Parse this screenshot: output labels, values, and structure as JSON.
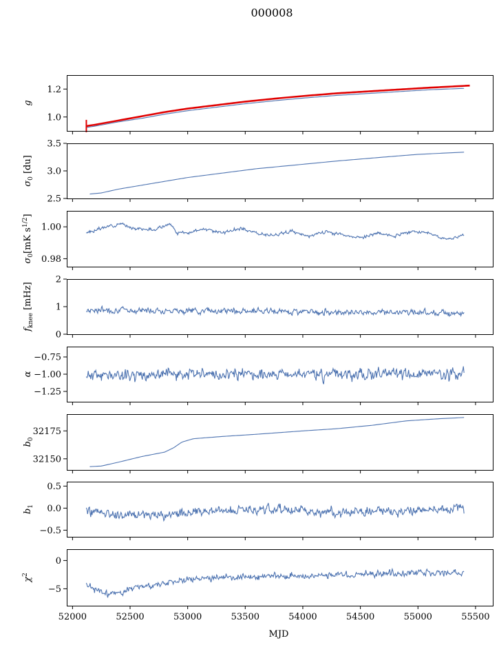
{
  "title": "000008",
  "chart_data": {
    "type": "line",
    "title": "000008",
    "xlabel": "MJD",
    "xlim": [
      51950,
      55650
    ],
    "xticks": [
      52000,
      52500,
      53000,
      53500,
      54000,
      54500,
      55000,
      55500
    ],
    "xtick_labels": [
      "52000",
      "52500",
      "53000",
      "53500",
      "54000",
      "54500",
      "55000",
      "55500"
    ],
    "colors": {
      "series": "#4c72b0",
      "fit": "#e00000"
    },
    "panels": [
      {
        "id": "g",
        "ylabel": "g",
        "ylim": [
          0.9,
          1.3
        ],
        "yticks": [
          1.0,
          1.2
        ],
        "ytick_labels": [
          "1.0",
          "1.2"
        ],
        "series": [
          {
            "style": "smooth",
            "color": "#4c72b0",
            "x": [
              52120,
              52200,
              52400,
              52600,
              52800,
              53000,
              53200,
              53500,
              53800,
              54000,
              54300,
              54600,
              54900,
              55100,
              55400
            ],
            "values": [
              0.925,
              0.935,
              0.965,
              0.99,
              1.02,
              1.045,
              1.065,
              1.095,
              1.12,
              1.135,
              1.155,
              1.17,
              1.185,
              1.195,
              1.205
            ]
          },
          {
            "style": "smooth",
            "color": "#e00000",
            "x": [
              52120,
              52200,
              52400,
              52600,
              52800,
              53000,
              53200,
              53500,
              53800,
              54000,
              54300,
              54600,
              54900,
              55100,
              55450
            ],
            "values": [
              0.935,
              0.945,
              0.975,
              1.005,
              1.035,
              1.06,
              1.08,
              1.11,
              1.135,
              1.15,
              1.17,
              1.185,
              1.2,
              1.21,
              1.225
            ]
          }
        ]
      },
      {
        "id": "sigma0-du",
        "ylabel": "σ0 [du]",
        "ylim": [
          2.5,
          3.5
        ],
        "yticks": [
          2.5,
          3.0,
          3.5
        ],
        "ytick_labels": [
          "2.5",
          "3.0",
          "3.5"
        ],
        "series": [
          {
            "style": "smooth",
            "color": "#4c72b0",
            "x": [
              52150,
              52250,
              52400,
              52600,
              52800,
              53000,
              53300,
              53600,
              54000,
              54300,
              54700,
              55000,
              55400
            ],
            "values": [
              2.58,
              2.6,
              2.67,
              2.74,
              2.81,
              2.88,
              2.96,
              3.04,
              3.12,
              3.18,
              3.25,
              3.3,
              3.34
            ]
          }
        ]
      },
      {
        "id": "sigma0-mk",
        "ylabel": "σ0[mK s1/2]",
        "ylim": [
          0.975,
          1.01
        ],
        "yticks": [
          0.98,
          1.0
        ],
        "ytick_labels": [
          "0.98",
          "1.00"
        ],
        "series": [
          {
            "style": "noisy",
            "amp": 0.0012,
            "seed": 3,
            "color": "#4c72b0",
            "x": [
              52120,
              52250,
              52400,
              52550,
              52700,
              52850,
              52900,
              53000,
              53150,
              53300,
              53450,
              53600,
              53750,
              53900,
              54050,
              54200,
              54350,
              54500,
              54650,
              54800,
              54950,
              55100,
              55250,
              55400
            ],
            "values": [
              0.996,
              0.999,
              1.002,
              0.999,
              0.998,
              1.002,
              0.996,
              0.996,
              0.999,
              0.996,
              0.999,
              0.996,
              0.995,
              0.997,
              0.994,
              0.997,
              0.995,
              0.993,
              0.996,
              0.994,
              0.997,
              0.996,
              0.992,
              0.995
            ]
          }
        ]
      },
      {
        "id": "fknee",
        "ylabel": "fknee [mHz]",
        "ylim": [
          0,
          2
        ],
        "yticks": [
          0,
          1,
          2
        ],
        "ytick_labels": [
          "0",
          "1",
          "2"
        ],
        "series": [
          {
            "style": "noisy",
            "amp": 0.13,
            "seed": 7,
            "color": "#4c72b0",
            "x": [
              52120,
              53000,
              54000,
              55400
            ],
            "values": [
              0.88,
              0.86,
              0.82,
              0.78
            ]
          }
        ]
      },
      {
        "id": "alpha",
        "ylabel": "α",
        "ylim": [
          -1.4,
          -0.6
        ],
        "yticks": [
          -1.25,
          -1.0,
          -0.75
        ],
        "ytick_labels": [
          "−1.25",
          "−1.00",
          "−0.75"
        ],
        "series": [
          {
            "style": "noisy",
            "amp": 0.1,
            "seed": 11,
            "color": "#4c72b0",
            "x": [
              52120,
              53000,
              54000,
              55400
            ],
            "values": [
              -1.02,
              -1.0,
              -1.0,
              -1.0
            ]
          }
        ]
      },
      {
        "id": "b0",
        "ylabel": "b0",
        "ylim": [
          32140,
          32190
        ],
        "yticks": [
          32150,
          32175
        ],
        "ytick_labels": [
          "32150",
          "32175"
        ],
        "series": [
          {
            "style": "smooth",
            "color": "#4c72b0",
            "x": [
              52150,
              52250,
              52400,
              52600,
              52800,
              52880,
              52950,
              53050,
              53300,
              53600,
              54000,
              54300,
              54600,
              54900,
              55200,
              55400
            ],
            "values": [
              32143,
              32143.5,
              32147,
              32152,
              32156,
              32160,
              32165,
              32168,
              32170,
              32172,
              32175,
              32177,
              32180,
              32184,
              32186,
              32187
            ]
          }
        ]
      },
      {
        "id": "b1",
        "ylabel": "b1",
        "ylim": [
          -0.65,
          0.6
        ],
        "yticks": [
          -0.5,
          0.0,
          0.5
        ],
        "ytick_labels": [
          "−0.5",
          "0.0",
          "0.5"
        ],
        "series": [
          {
            "style": "noisy",
            "amp": 0.13,
            "seed": 19,
            "color": "#4c72b0",
            "x": [
              52120,
              52400,
              52800,
              53200,
              53800,
              54300,
              54800,
              55400
            ],
            "values": [
              -0.05,
              -0.15,
              -0.15,
              -0.05,
              -0.02,
              -0.1,
              -0.05,
              0.0
            ]
          }
        ]
      },
      {
        "id": "chi2",
        "ylabel": "χ2",
        "ylim": [
          -8,
          2
        ],
        "yticks": [
          -5,
          0
        ],
        "ytick_labels": [
          "−5",
          "0"
        ],
        "series": [
          {
            "style": "noisy",
            "amp": 0.7,
            "seed": 23,
            "color": "#4c72b0",
            "x": [
              52120,
              52300,
              52500,
              52800,
              53000,
              53400,
              53800,
              54300,
              54800,
              55400
            ],
            "values": [
              -4.5,
              -6,
              -5,
              -4,
              -3.2,
              -3,
              -2.8,
              -2.5,
              -2.3,
              -2.2
            ]
          }
        ]
      }
    ]
  }
}
